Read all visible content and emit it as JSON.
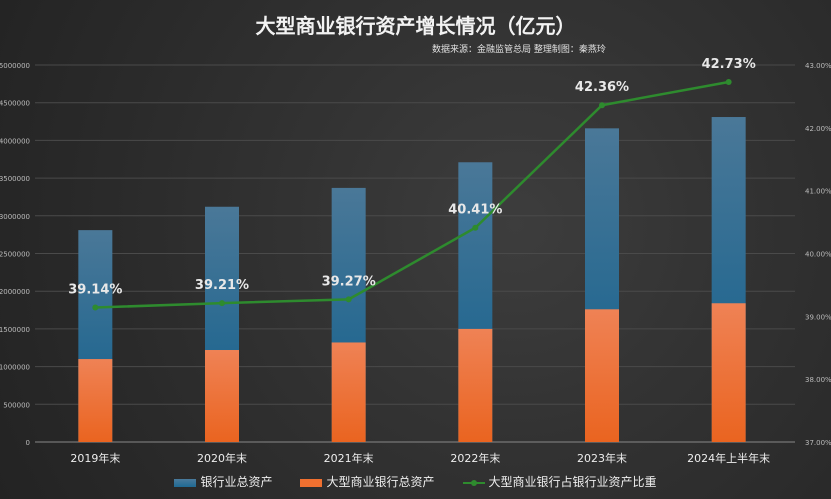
{
  "chart_data": {
    "type": "bar",
    "title": "大型商业银行资产增长情况（亿元）",
    "subtitle": "数据来源：金融监管总局 整理制图：秦燕玲",
    "categories": [
      "2019年末",
      "2020年末",
      "2021年末",
      "2022年末",
      "2023年末",
      "2024年上半年末"
    ],
    "series": [
      {
        "name": "银行业总资产",
        "type": "bar",
        "axis": "left",
        "color": "#1f6a94",
        "values": [
          2810000,
          3120000,
          3370000,
          3710000,
          4160000,
          4310000
        ]
      },
      {
        "name": "大型商业银行总资产",
        "type": "bar",
        "axis": "left",
        "color": "#f07030",
        "values": [
          1100000,
          1220000,
          1320000,
          1500000,
          1760000,
          1840000
        ]
      },
      {
        "name": "大型商业银行占银行业资产比重",
        "type": "line",
        "axis": "right",
        "color": "#2e8b2e",
        "values": [
          39.14,
          39.21,
          39.27,
          40.41,
          42.36,
          42.73
        ],
        "labels": [
          "39.14%",
          "39.21%",
          "39.27%",
          "40.41%",
          "42.36%",
          "42.73%"
        ]
      }
    ],
    "left_axis": {
      "ylim": [
        0,
        5000000
      ],
      "ticks": [
        "0",
        "500000",
        "1000000",
        "1500000",
        "2000000",
        "2500000",
        "3000000",
        "3500000",
        "4000000",
        "4500000",
        "5000000"
      ]
    },
    "right_axis": {
      "ylim": [
        37,
        43
      ],
      "ticks": [
        "37.00%",
        "38.00%",
        "39.00%",
        "40.00%",
        "41.00%",
        "42.00%",
        "43.00%"
      ]
    },
    "grid": true,
    "legend": "bottom"
  }
}
